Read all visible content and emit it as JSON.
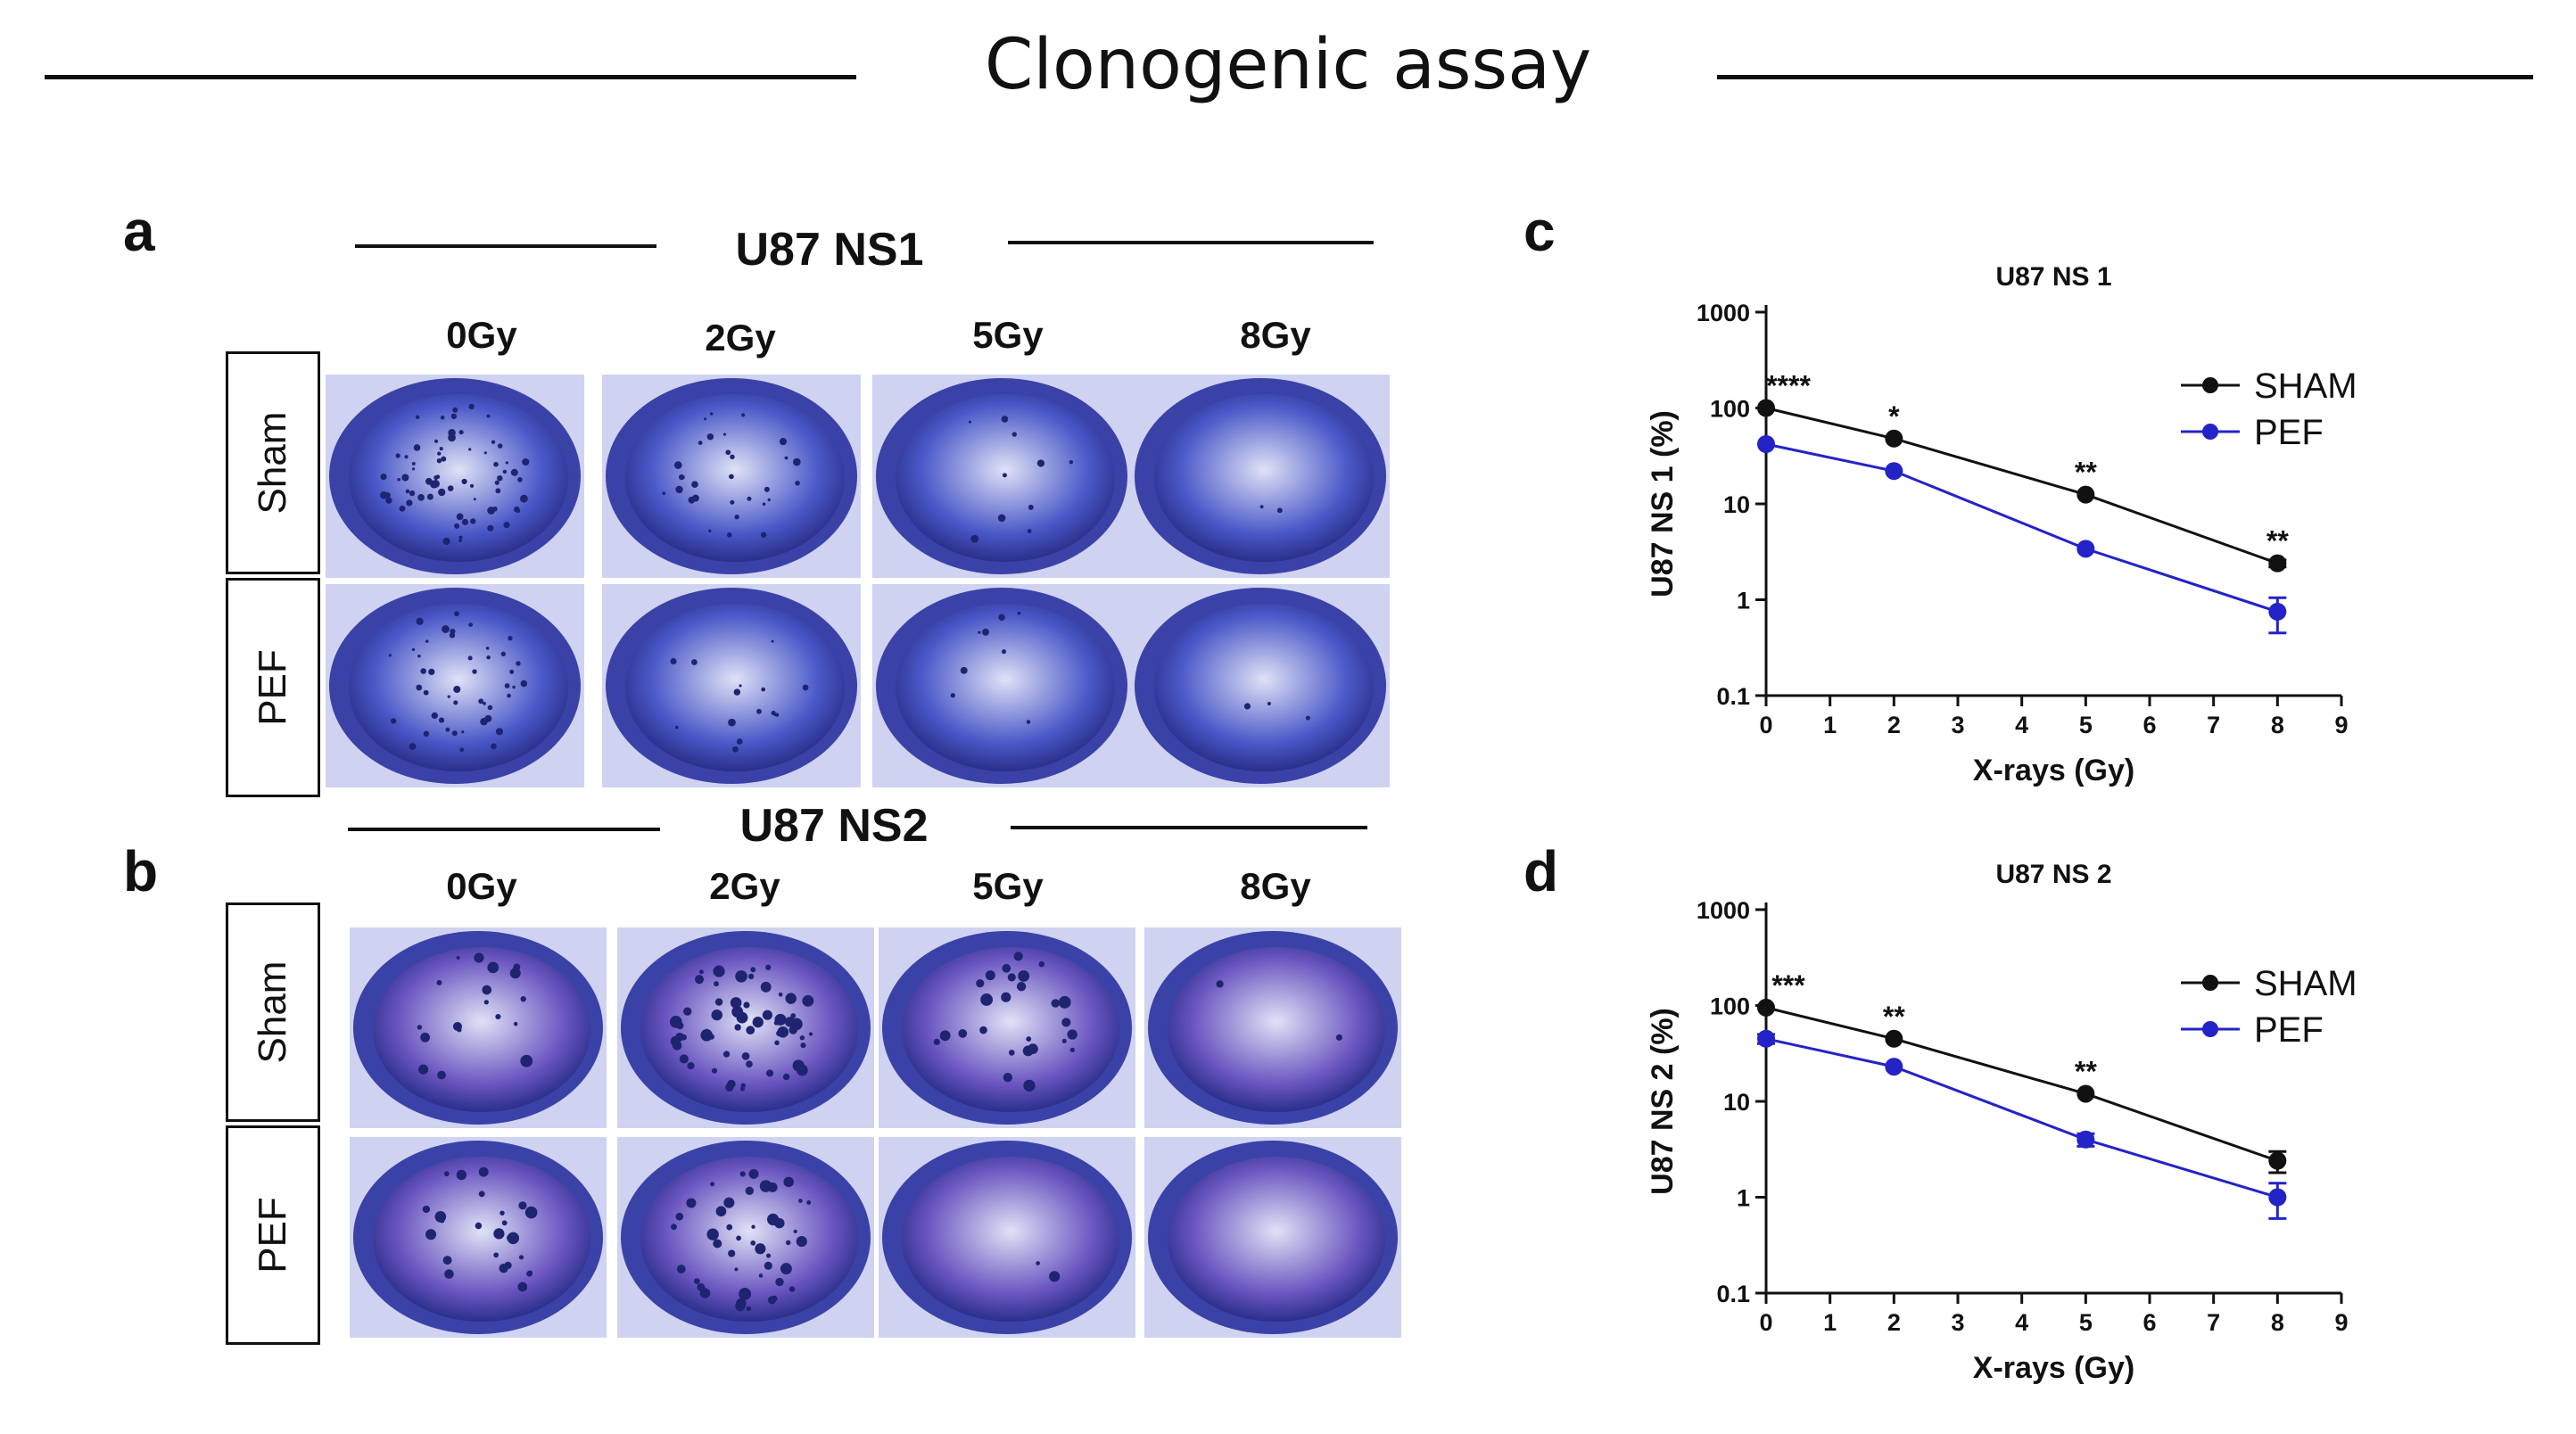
{
  "figure": {
    "title": "Clonogenic assay",
    "panel_a": {
      "letter": "a",
      "cell_line": "U87 NS1",
      "doses": [
        "0Gy",
        "2Gy",
        "5Gy",
        "8Gy"
      ],
      "rows": [
        "Sham",
        "PEF"
      ]
    },
    "panel_b": {
      "letter": "b",
      "cell_line": "U87 NS2",
      "doses": [
        "0Gy",
        "2Gy",
        "5Gy",
        "8Gy"
      ],
      "rows": [
        "Sham",
        "PEF"
      ]
    },
    "panel_c_letter": "c",
    "panel_d_letter": "d"
  },
  "colors": {
    "sham": "#111111",
    "pef": "#2323c8",
    "stain_ns1": "#4a58c8",
    "stain_ns2": "#6a55c0"
  },
  "chart_data": [
    {
      "type": "line",
      "panel": "c",
      "title": "U87 NS 1",
      "xlabel": "X-rays (Gy)",
      "ylabel": "U87 NS 1 (%)",
      "yscale": "log",
      "xlim": [
        0,
        9
      ],
      "ylim": [
        0.1,
        1000
      ],
      "xticks": [
        "0",
        "1",
        "2",
        "3",
        "4",
        "5",
        "6",
        "7",
        "8",
        "9"
      ],
      "yticks": [
        "0.1",
        "1",
        "10",
        "100",
        "1000"
      ],
      "legend_position": "top-right",
      "series": [
        {
          "name": "SHAM",
          "color": "#111111",
          "x": [
            0,
            2,
            5,
            8
          ],
          "y": [
            100,
            48,
            12.5,
            2.4
          ],
          "err": [
            0,
            0,
            0,
            0.2
          ]
        },
        {
          "name": "PEF",
          "color": "#2323c8",
          "x": [
            0,
            2,
            5,
            8
          ],
          "y": [
            42,
            22,
            3.4,
            0.75
          ],
          "err": [
            0,
            0,
            0,
            0.3
          ]
        }
      ],
      "annotations": [
        {
          "x": 0,
          "y": 100,
          "text": "****"
        },
        {
          "x": 2,
          "y": 48,
          "text": "*"
        },
        {
          "x": 5,
          "y": 12.5,
          "text": "**"
        },
        {
          "x": 8,
          "y": 2.4,
          "text": "**"
        }
      ]
    },
    {
      "type": "line",
      "panel": "d",
      "title": "U87 NS 2",
      "xlabel": "X-rays (Gy)",
      "ylabel": "U87 NS 2 (%)",
      "yscale": "log",
      "xlim": [
        0,
        9
      ],
      "ylim": [
        0.1,
        1000
      ],
      "xticks": [
        "0",
        "1",
        "2",
        "3",
        "4",
        "5",
        "6",
        "7",
        "8",
        "9"
      ],
      "yticks": [
        "0.1",
        "1",
        "10",
        "100",
        "1000"
      ],
      "legend_position": "top-right",
      "series": [
        {
          "name": "SHAM",
          "color": "#111111",
          "x": [
            0,
            2,
            5,
            8
          ],
          "y": [
            95,
            45,
            12,
            2.4
          ],
          "err": [
            0,
            0,
            0,
            0.6
          ]
        },
        {
          "name": "PEF",
          "color": "#2323c8",
          "x": [
            0,
            2,
            5,
            8
          ],
          "y": [
            45,
            23,
            4.0,
            1.0
          ],
          "err": [
            5,
            0,
            0.6,
            0.4
          ]
        }
      ],
      "annotations": [
        {
          "x": 0,
          "y": 95,
          "text": "***"
        },
        {
          "x": 2,
          "y": 45,
          "text": "**"
        },
        {
          "x": 5,
          "y": 12,
          "text": "**"
        }
      ]
    }
  ]
}
